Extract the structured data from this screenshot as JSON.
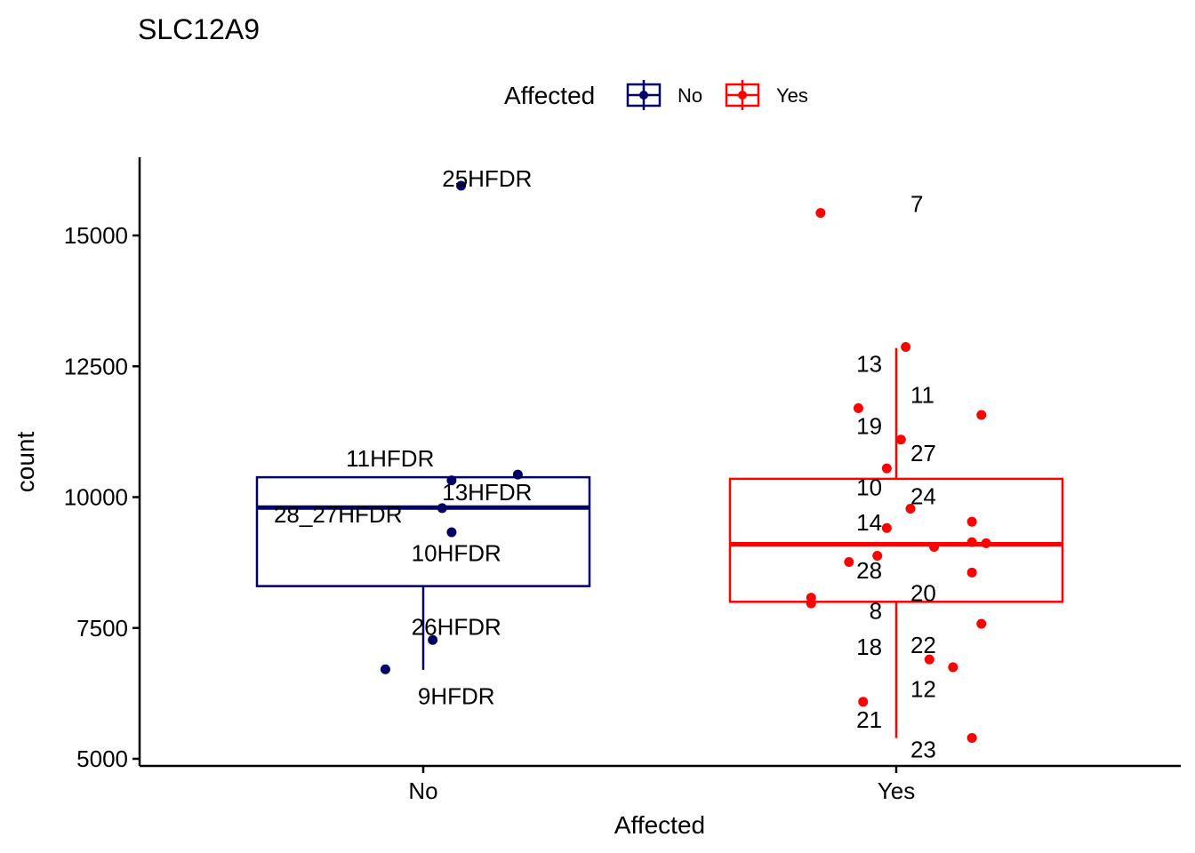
{
  "chart_data": {
    "type": "box",
    "title": "SLC12A9",
    "xlabel": "Affected",
    "ylabel": "count",
    "categories": [
      "No",
      "Yes"
    ],
    "ylim": [
      4850,
      16500
    ],
    "yticks": [
      5000,
      7500,
      10000,
      12500,
      15000
    ],
    "grid": false,
    "legend": {
      "title": "Affected",
      "position": "top",
      "entries": [
        "No",
        "Yes"
      ]
    },
    "colors": {
      "No": "#000066",
      "Yes": "#FF0000"
    },
    "boxes": [
      {
        "group": "No",
        "lower_whisker": 6700,
        "q1": 8300,
        "median": 9800,
        "q3": 10380,
        "upper_whisker": 10400
      },
      {
        "group": "Yes",
        "lower_whisker": 5400,
        "q1": 8000,
        "median": 9100,
        "q3": 10350,
        "upper_whisker": 12850
      }
    ],
    "points": [
      {
        "group": "No",
        "jitter": 0.08,
        "y": 15950
      },
      {
        "group": "No",
        "jitter": 0.06,
        "y": 10320
      },
      {
        "group": "No",
        "jitter": 0.2,
        "y": 10430
      },
      {
        "group": "No",
        "jitter": 0.04,
        "y": 9790
      },
      {
        "group": "No",
        "jitter": 0.06,
        "y": 9330
      },
      {
        "group": "No",
        "jitter": 0.02,
        "y": 7270
      },
      {
        "group": "No",
        "jitter": -0.08,
        "y": 6710
      },
      {
        "group": "Yes",
        "jitter": -0.16,
        "y": 15430
      },
      {
        "group": "Yes",
        "jitter": 0.02,
        "y": 12870
      },
      {
        "group": "Yes",
        "jitter": -0.08,
        "y": 11700
      },
      {
        "group": "Yes",
        "jitter": 0.18,
        "y": 11570
      },
      {
        "group": "Yes",
        "jitter": 0.01,
        "y": 11100
      },
      {
        "group": "Yes",
        "jitter": -0.02,
        "y": 10550
      },
      {
        "group": "Yes",
        "jitter": 0.03,
        "y": 9780
      },
      {
        "group": "Yes",
        "jitter": 0.16,
        "y": 9530
      },
      {
        "group": "Yes",
        "jitter": -0.02,
        "y": 9410
      },
      {
        "group": "Yes",
        "jitter": 0.16,
        "y": 9140
      },
      {
        "group": "Yes",
        "jitter": 0.19,
        "y": 9120
      },
      {
        "group": "Yes",
        "jitter": 0.08,
        "y": 9050
      },
      {
        "group": "Yes",
        "jitter": -0.04,
        "y": 8880
      },
      {
        "group": "Yes",
        "jitter": -0.1,
        "y": 8760
      },
      {
        "group": "Yes",
        "jitter": 0.16,
        "y": 8560
      },
      {
        "group": "Yes",
        "jitter": -0.18,
        "y": 8080
      },
      {
        "group": "Yes",
        "jitter": -0.18,
        "y": 7970
      },
      {
        "group": "Yes",
        "jitter": 0.18,
        "y": 7580
      },
      {
        "group": "Yes",
        "jitter": 0.07,
        "y": 6900
      },
      {
        "group": "Yes",
        "jitter": 0.12,
        "y": 6750
      },
      {
        "group": "Yes",
        "jitter": -0.07,
        "y": 6090
      },
      {
        "group": "Yes",
        "jitter": 0.16,
        "y": 5400
      }
    ],
    "point_labels": [
      {
        "text": "25HFDR",
        "group": "No",
        "offset": 0.135,
        "y": 16090,
        "anchor": "middle"
      },
      {
        "text": "11HFDR",
        "group": "No",
        "offset": -0.07,
        "y": 10740,
        "anchor": "middle"
      },
      {
        "text": "13HFDR",
        "group": "No",
        "offset": 0.135,
        "y": 10090,
        "anchor": "middle"
      },
      {
        "text": "28_27HFDR",
        "group": "No",
        "offset": -0.18,
        "y": 9670,
        "anchor": "middle"
      },
      {
        "text": "10HFDR",
        "group": "No",
        "offset": 0.07,
        "y": 8930,
        "anchor": "middle"
      },
      {
        "text": "26HFDR",
        "group": "No",
        "offset": 0.07,
        "y": 7520,
        "anchor": "middle"
      },
      {
        "text": "9HFDR",
        "group": "No",
        "offset": 0.07,
        "y": 6200,
        "anchor": "middle"
      },
      {
        "text": "7",
        "group": "Yes",
        "offset": 0.03,
        "y": 15600,
        "anchor": "start"
      },
      {
        "text": "13",
        "group": "Yes",
        "offset": -0.03,
        "y": 12550,
        "anchor": "end"
      },
      {
        "text": "11",
        "group": "Yes",
        "offset": 0.03,
        "y": 11950,
        "anchor": "start"
      },
      {
        "text": "19",
        "group": "Yes",
        "offset": -0.03,
        "y": 11360,
        "anchor": "end"
      },
      {
        "text": "27",
        "group": "Yes",
        "offset": 0.03,
        "y": 10840,
        "anchor": "start"
      },
      {
        "text": "10",
        "group": "Yes",
        "offset": -0.03,
        "y": 10190,
        "anchor": "end"
      },
      {
        "text": "24",
        "group": "Yes",
        "offset": 0.03,
        "y": 10020,
        "anchor": "start"
      },
      {
        "text": "14",
        "group": "Yes",
        "offset": -0.03,
        "y": 9520,
        "anchor": "end"
      },
      {
        "text": "28",
        "group": "Yes",
        "offset": -0.03,
        "y": 8600,
        "anchor": "end"
      },
      {
        "text": "20",
        "group": "Yes",
        "offset": 0.03,
        "y": 8170,
        "anchor": "start"
      },
      {
        "text": "8",
        "group": "Yes",
        "offset": -0.03,
        "y": 7830,
        "anchor": "end"
      },
      {
        "text": "22",
        "group": "Yes",
        "offset": 0.03,
        "y": 7170,
        "anchor": "start"
      },
      {
        "text": "18",
        "group": "Yes",
        "offset": -0.03,
        "y": 7140,
        "anchor": "end"
      },
      {
        "text": "12",
        "group": "Yes",
        "offset": 0.03,
        "y": 6330,
        "anchor": "start"
      },
      {
        "text": "21",
        "group": "Yes",
        "offset": -0.03,
        "y": 5750,
        "anchor": "end"
      },
      {
        "text": "23",
        "group": "Yes",
        "offset": 0.03,
        "y": 5180,
        "anchor": "start"
      }
    ]
  }
}
